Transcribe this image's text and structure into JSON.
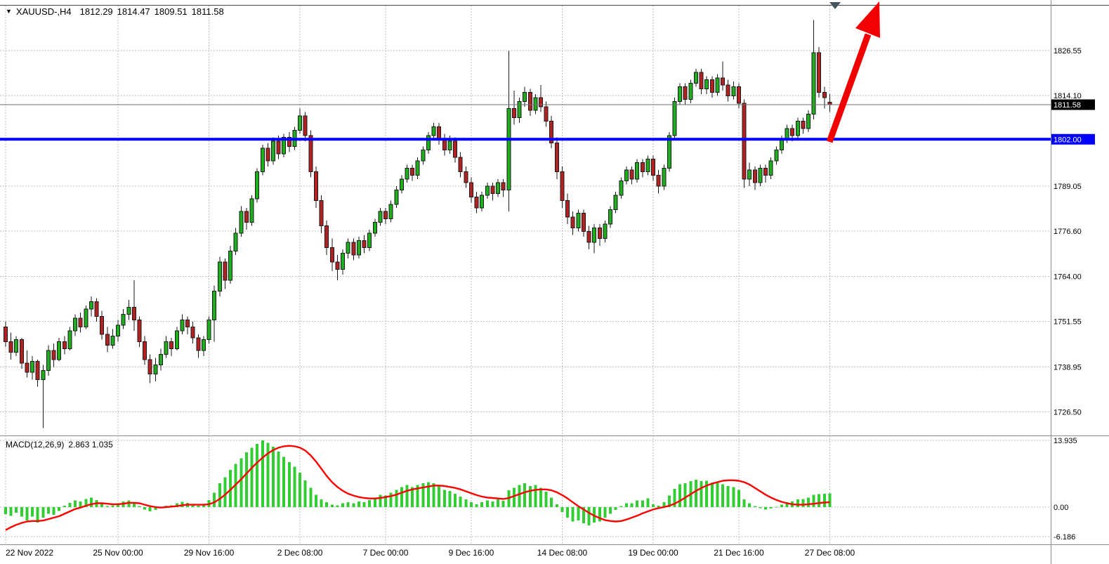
{
  "header": {
    "collapse_icon": "▼",
    "symbol_period": "XAUUSD-,H4",
    "open": "1812.29",
    "high": "1814.47",
    "low": "1809.51",
    "close": "1811.58"
  },
  "indicator_label": {
    "name": "MACD(12,26,9)",
    "values": "2.863 1.035"
  },
  "colors": {
    "background": "#FFFFFF",
    "up": "#1EAE1E",
    "down": "#B22222",
    "outline": "#1A1A1A",
    "grid": "#BDBDBD",
    "separator": "#8C8C8C",
    "top_border": "#444444",
    "support_line": "#0000FF",
    "signal": "#FF0000",
    "histogram": "#32CD32",
    "last_price_line": "#6E6E6E",
    "last_price_badge_bg": "#000000",
    "arrow": "#F20000",
    "shift_marker": "#44545E",
    "text": "#000000"
  },
  "chart_data": {
    "type": "candlestick",
    "title": "XAUUSD-,H4",
    "current_bar": {
      "open": 1812.29,
      "high": 1814.47,
      "low": 1809.51,
      "close": 1811.58
    },
    "ylim": [
      1720,
      1839
    ],
    "price_axis_ticks": [
      {
        "value": 1826.55,
        "label": "1826.55"
      },
      {
        "value": 1814.1,
        "label": "1814.10"
      },
      {
        "value": 1789.05,
        "label": "1789.05"
      },
      {
        "value": 1776.6,
        "label": "1776.60"
      },
      {
        "value": 1764.0,
        "label": "1764.00"
      },
      {
        "value": 1751.55,
        "label": "1751.55"
      },
      {
        "value": 1738.95,
        "label": "1738.95"
      },
      {
        "value": 1726.5,
        "label": "1726.50"
      }
    ],
    "last_price": {
      "value": 1811.58,
      "label": "1811.58"
    },
    "support_line": {
      "value": 1802.0,
      "label": "1802.00"
    },
    "time_ticks": [
      {
        "index": 0,
        "label": "22 Nov 2022",
        "align": "start"
      },
      {
        "index": 21,
        "label": "25 Nov 00:00"
      },
      {
        "index": 38,
        "label": "29 Nov 16:00"
      },
      {
        "index": 55,
        "label": "2 Dec 08:00"
      },
      {
        "index": 71,
        "label": "7 Dec 00:00"
      },
      {
        "index": 87,
        "label": "9 Dec 16:00"
      },
      {
        "index": 104,
        "label": "14 Dec 08:00"
      },
      {
        "index": 121,
        "label": "19 Dec 00:00"
      },
      {
        "index": 137,
        "label": "21 Dec 16:00"
      },
      {
        "index": 154,
        "label": "27 Dec 08:00"
      }
    ],
    "candles": [
      [
        1750.0,
        1751.5,
        1744.5,
        1746.0
      ],
      [
        1746.0,
        1748.5,
        1741.0,
        1743.0
      ],
      [
        1743.0,
        1747.5,
        1742.0,
        1746.5
      ],
      [
        1746.5,
        1747.0,
        1738.5,
        1740.0
      ],
      [
        1740.0,
        1743.5,
        1736.0,
        1737.5
      ],
      [
        1737.5,
        1742.0,
        1735.5,
        1740.5
      ],
      [
        1740.5,
        1741.0,
        1733.5,
        1735.5
      ],
      [
        1735.5,
        1739.5,
        1722.0,
        1738.0
      ],
      [
        1738.0,
        1745.0,
        1736.5,
        1743.5
      ],
      [
        1743.5,
        1745.5,
        1739.0,
        1741.0
      ],
      [
        1741.0,
        1747.0,
        1740.5,
        1746.0
      ],
      [
        1746.0,
        1747.5,
        1742.5,
        1744.0
      ],
      [
        1744.0,
        1750.0,
        1743.5,
        1749.0
      ],
      [
        1749.0,
        1753.5,
        1747.5,
        1752.5
      ],
      [
        1752.5,
        1754.0,
        1748.5,
        1750.0
      ],
      [
        1750.0,
        1756.0,
        1749.5,
        1755.0
      ],
      [
        1755.0,
        1758.5,
        1753.0,
        1757.0
      ],
      [
        1757.0,
        1758.0,
        1751.5,
        1753.0
      ],
      [
        1753.0,
        1754.5,
        1746.5,
        1748.0
      ],
      [
        1748.0,
        1750.0,
        1743.0,
        1745.0
      ],
      [
        1745.0,
        1749.5,
        1744.0,
        1747.5
      ],
      [
        1747.5,
        1752.0,
        1746.0,
        1750.5
      ],
      [
        1750.5,
        1755.0,
        1749.5,
        1753.5
      ],
      [
        1753.5,
        1757.5,
        1752.0,
        1755.5
      ],
      [
        1755.5,
        1763.0,
        1749.0,
        1752.0
      ],
      [
        1752.0,
        1753.0,
        1744.5,
        1746.0
      ],
      [
        1746.0,
        1747.5,
        1739.5,
        1741.0
      ],
      [
        1741.0,
        1742.5,
        1734.5,
        1737.0
      ],
      [
        1737.0,
        1741.5,
        1735.0,
        1739.5
      ],
      [
        1739.5,
        1744.0,
        1738.0,
        1742.5
      ],
      [
        1742.5,
        1747.5,
        1741.5,
        1746.0
      ],
      [
        1746.0,
        1747.0,
        1742.0,
        1744.0
      ],
      [
        1744.0,
        1750.0,
        1743.5,
        1749.0
      ],
      [
        1749.0,
        1753.5,
        1748.0,
        1752.0
      ],
      [
        1752.0,
        1753.0,
        1748.0,
        1750.0
      ],
      [
        1750.0,
        1751.5,
        1745.5,
        1747.0
      ],
      [
        1747.0,
        1748.0,
        1741.5,
        1743.5
      ],
      [
        1743.5,
        1747.5,
        1742.0,
        1746.5
      ],
      [
        1746.5,
        1753.0,
        1745.5,
        1752.0
      ],
      [
        1752.0,
        1761.5,
        1746.0,
        1760.0
      ],
      [
        1760.0,
        1769.5,
        1758.5,
        1768.0
      ],
      [
        1768.0,
        1769.0,
        1760.5,
        1763.0
      ],
      [
        1763.0,
        1772.5,
        1762.0,
        1771.0
      ],
      [
        1771.0,
        1777.5,
        1770.0,
        1776.0
      ],
      [
        1776.0,
        1783.5,
        1775.0,
        1782.0
      ],
      [
        1782.0,
        1783.0,
        1777.0,
        1779.0
      ],
      [
        1779.0,
        1786.5,
        1778.0,
        1785.5
      ],
      [
        1785.5,
        1794.0,
        1784.5,
        1793.0
      ],
      [
        1793.0,
        1800.5,
        1792.0,
        1799.5
      ],
      [
        1799.5,
        1801.0,
        1794.5,
        1796.0
      ],
      [
        1796.0,
        1802.5,
        1795.0,
        1801.5
      ],
      [
        1801.5,
        1803.0,
        1796.5,
        1798.0
      ],
      [
        1798.0,
        1803.5,
        1797.0,
        1802.5
      ],
      [
        1802.5,
        1804.0,
        1798.5,
        1800.0
      ],
      [
        1800.0,
        1805.5,
        1799.0,
        1804.5
      ],
      [
        1804.5,
        1810.5,
        1803.5,
        1808.5
      ],
      [
        1808.5,
        1809.5,
        1801.5,
        1803.0
      ],
      [
        1803.0,
        1804.5,
        1791.5,
        1793.0
      ],
      [
        1793.0,
        1794.5,
        1783.0,
        1785.0
      ],
      [
        1785.0,
        1786.5,
        1776.0,
        1778.0
      ],
      [
        1778.0,
        1779.5,
        1770.0,
        1772.0
      ],
      [
        1772.0,
        1774.5,
        1765.5,
        1768.0
      ],
      [
        1768.0,
        1770.0,
        1763.0,
        1766.0
      ],
      [
        1766.0,
        1771.5,
        1764.5,
        1770.5
      ],
      [
        1770.5,
        1774.5,
        1769.0,
        1773.5
      ],
      [
        1773.5,
        1774.5,
        1768.5,
        1770.0
      ],
      [
        1770.0,
        1775.0,
        1769.0,
        1774.0
      ],
      [
        1774.0,
        1775.5,
        1770.5,
        1772.0
      ],
      [
        1772.0,
        1777.0,
        1771.0,
        1776.0
      ],
      [
        1776.0,
        1780.0,
        1775.0,
        1779.0
      ],
      [
        1779.0,
        1783.0,
        1778.0,
        1782.0
      ],
      [
        1782.0,
        1783.0,
        1778.5,
        1780.0
      ],
      [
        1780.0,
        1785.0,
        1779.0,
        1784.0
      ],
      [
        1784.0,
        1789.0,
        1783.0,
        1788.0
      ],
      [
        1788.0,
        1792.0,
        1787.0,
        1791.0
      ],
      [
        1791.0,
        1795.0,
        1790.0,
        1794.0
      ],
      [
        1794.0,
        1795.0,
        1790.5,
        1792.0
      ],
      [
        1792.0,
        1797.0,
        1791.0,
        1796.0
      ],
      [
        1796.0,
        1800.0,
        1795.0,
        1799.0
      ],
      [
        1799.0,
        1804.0,
        1798.0,
        1803.0
      ],
      [
        1803.0,
        1806.5,
        1802.0,
        1805.5
      ],
      [
        1805.5,
        1806.5,
        1800.5,
        1802.0
      ],
      [
        1802.0,
        1803.5,
        1797.5,
        1799.0
      ],
      [
        1799.0,
        1803.0,
        1798.0,
        1801.5
      ],
      [
        1801.5,
        1802.5,
        1795.5,
        1797.0
      ],
      [
        1797.0,
        1798.5,
        1791.5,
        1793.0
      ],
      [
        1793.0,
        1794.5,
        1788.5,
        1790.0
      ],
      [
        1790.0,
        1791.5,
        1784.5,
        1786.0
      ],
      [
        1786.0,
        1787.5,
        1781.5,
        1783.0
      ],
      [
        1783.0,
        1787.5,
        1782.0,
        1786.5
      ],
      [
        1786.5,
        1790.0,
        1785.5,
        1789.0
      ],
      [
        1789.0,
        1790.0,
        1785.0,
        1787.0
      ],
      [
        1787.0,
        1791.0,
        1786.0,
        1790.0
      ],
      [
        1790.0,
        1791.0,
        1786.0,
        1788.0
      ],
      [
        1788.0,
        1826.5,
        1782.0,
        1810.5
      ],
      [
        1810.5,
        1815.5,
        1806.0,
        1808.0
      ],
      [
        1808.0,
        1813.5,
        1806.5,
        1812.5
      ],
      [
        1812.5,
        1816.5,
        1811.0,
        1815.0
      ],
      [
        1815.0,
        1816.0,
        1808.5,
        1810.0
      ],
      [
        1810.0,
        1814.5,
        1809.0,
        1813.5
      ],
      [
        1813.5,
        1817.0,
        1809.5,
        1811.0
      ],
      [
        1811.0,
        1812.5,
        1805.5,
        1807.0
      ],
      [
        1807.0,
        1808.5,
        1799.5,
        1801.0
      ],
      [
        1801.0,
        1802.5,
        1791.0,
        1793.0
      ],
      [
        1793.0,
        1794.5,
        1783.0,
        1785.0
      ],
      [
        1785.0,
        1787.0,
        1778.5,
        1780.5
      ],
      [
        1780.5,
        1782.0,
        1775.5,
        1777.5
      ],
      [
        1777.5,
        1782.5,
        1776.5,
        1781.5
      ],
      [
        1781.5,
        1782.5,
        1775.0,
        1776.5
      ],
      [
        1776.5,
        1778.0,
        1771.5,
        1773.5
      ],
      [
        1773.5,
        1778.5,
        1770.5,
        1777.5
      ],
      [
        1777.5,
        1778.5,
        1772.5,
        1774.5
      ],
      [
        1774.5,
        1779.5,
        1773.5,
        1778.5
      ],
      [
        1778.5,
        1783.5,
        1777.5,
        1782.5
      ],
      [
        1782.5,
        1787.5,
        1781.5,
        1786.5
      ],
      [
        1786.5,
        1791.5,
        1785.5,
        1790.5
      ],
      [
        1790.5,
        1794.5,
        1789.5,
        1793.5
      ],
      [
        1793.5,
        1794.5,
        1789.5,
        1791.0
      ],
      [
        1791.0,
        1796.5,
        1790.0,
        1795.5
      ],
      [
        1795.5,
        1796.5,
        1791.5,
        1793.0
      ],
      [
        1793.0,
        1797.5,
        1792.0,
        1796.5
      ],
      [
        1796.5,
        1797.5,
        1790.5,
        1792.0
      ],
      [
        1792.0,
        1793.5,
        1787.0,
        1789.0
      ],
      [
        1789.0,
        1795.0,
        1788.0,
        1794.0
      ],
      [
        1794.0,
        1804.0,
        1793.0,
        1803.0
      ],
      [
        1803.0,
        1813.5,
        1802.0,
        1812.5
      ],
      [
        1812.5,
        1817.5,
        1811.5,
        1816.5
      ],
      [
        1816.5,
        1817.5,
        1811.5,
        1813.0
      ],
      [
        1813.0,
        1818.5,
        1812.0,
        1817.5
      ],
      [
        1817.5,
        1821.5,
        1816.5,
        1820.5
      ],
      [
        1820.5,
        1821.5,
        1814.5,
        1816.0
      ],
      [
        1816.0,
        1819.5,
        1814.5,
        1818.5
      ],
      [
        1818.5,
        1819.5,
        1813.5,
        1815.0
      ],
      [
        1815.0,
        1820.0,
        1814.0,
        1819.0
      ],
      [
        1819.0,
        1823.5,
        1815.5,
        1817.0
      ],
      [
        1817.0,
        1818.5,
        1812.5,
        1814.0
      ],
      [
        1814.0,
        1818.0,
        1813.0,
        1816.5
      ],
      [
        1816.5,
        1817.5,
        1810.5,
        1812.0
      ],
      [
        1812.0,
        1813.0,
        1788.5,
        1791.0
      ],
      [
        1791.0,
        1795.5,
        1789.0,
        1793.5
      ],
      [
        1793.5,
        1794.5,
        1788.0,
        1790.0
      ],
      [
        1790.0,
        1795.0,
        1789.0,
        1794.0
      ],
      [
        1794.0,
        1795.0,
        1790.0,
        1792.0
      ],
      [
        1792.0,
        1797.0,
        1791.0,
        1796.0
      ],
      [
        1796.0,
        1800.0,
        1795.0,
        1799.0
      ],
      [
        1799.0,
        1803.0,
        1798.0,
        1802.0
      ],
      [
        1802.0,
        1806.0,
        1801.0,
        1805.0
      ],
      [
        1805.0,
        1806.0,
        1801.5,
        1803.0
      ],
      [
        1803.0,
        1808.0,
        1802.0,
        1807.0
      ],
      [
        1807.0,
        1808.0,
        1803.5,
        1805.0
      ],
      [
        1805.0,
        1810.0,
        1804.0,
        1809.0
      ],
      [
        1809.0,
        1835.0,
        1807.5,
        1826.0
      ],
      [
        1826.0,
        1827.5,
        1813.5,
        1815.0
      ],
      [
        1815.0,
        1816.5,
        1810.5,
        1813.5
      ],
      [
        1812.29,
        1814.47,
        1809.51,
        1811.58
      ]
    ],
    "macd": {
      "params": "12,26,9",
      "macd_value": 2.863,
      "signal_value": 1.035,
      "ylim": [
        -7.77,
        14.66
      ],
      "axis_ticks": [
        {
          "value": 13.935,
          "label": "13.935"
        },
        {
          "value": 0,
          "label": "0.00"
        },
        {
          "value": -6.186,
          "label": "-6.186"
        }
      ],
      "histogram": [
        -1.5,
        -1.8,
        -1.2,
        -2.0,
        -2.8,
        -2.0,
        -3.2,
        -2.2,
        -1.4,
        -1.6,
        -0.8,
        0.3,
        0.9,
        1.4,
        1.2,
        1.7,
        2.0,
        1.5,
        0.8,
        0.2,
        0.4,
        0.8,
        1.2,
        1.4,
        1.0,
        0.2,
        -0.5,
        -0.9,
        -0.6,
        -0.2,
        0.3,
        0.4,
        0.8,
        1.1,
        0.9,
        0.5,
        0.3,
        0.6,
        1.5,
        3.0,
        5.0,
        6.2,
        7.8,
        9.0,
        10.2,
        11.4,
        12.4,
        13.2,
        13.9,
        13.4,
        12.6,
        11.6,
        10.5,
        9.4,
        8.4,
        7.2,
        5.6,
        4.0,
        2.6,
        1.6,
        1.0,
        0.5,
        0.4,
        0.8,
        1.0,
        0.8,
        1.2,
        1.0,
        1.5,
        2.0,
        2.6,
        2.4,
        3.0,
        3.6,
        4.2,
        4.6,
        4.2,
        4.6,
        5.0,
        5.2,
        5.0,
        4.4,
        3.6,
        3.4,
        2.8,
        2.2,
        1.6,
        1.0,
        0.6,
        1.0,
        1.4,
        1.2,
        1.6,
        1.3,
        3.5,
        4.0,
        4.6,
        5.0,
        4.4,
        4.6,
        4.0,
        3.2,
        2.0,
        0.6,
        -1.0,
        -2.2,
        -3.0,
        -2.8,
        -3.4,
        -3.8,
        -3.2,
        -3.0,
        -2.2,
        -1.4,
        -0.6,
        0.2,
        0.8,
        0.8,
        1.4,
        1.4,
        1.8,
        0.6,
        0.3,
        1.0,
        2.4,
        3.8,
        4.8,
        5.0,
        5.4,
        5.7,
        5.4,
        5.5,
        5.1,
        5.2,
        4.8,
        4.4,
        4.2,
        3.6,
        1.6,
        0.8,
        0.2,
        -0.2,
        -0.5,
        -0.3,
        0.1,
        0.5,
        1.0,
        1.2,
        1.6,
        1.7,
        2.0,
        2.6,
        2.7,
        2.8,
        2.863
      ],
      "signal": [
        -4.8,
        -4.2,
        -3.7,
        -3.3,
        -3.0,
        -2.9,
        -2.9,
        -2.8,
        -2.5,
        -2.2,
        -1.9,
        -1.4,
        -0.9,
        -0.4,
        -0.1,
        0.3,
        0.6,
        0.8,
        0.8,
        0.7,
        0.6,
        0.6,
        0.7,
        0.9,
        0.9,
        0.8,
        0.5,
        0.2,
        0.0,
        -0.1,
        0.0,
        0.1,
        0.2,
        0.4,
        0.5,
        0.5,
        0.5,
        0.5,
        0.6,
        1.0,
        1.7,
        2.6,
        3.6,
        4.7,
        5.8,
        7.0,
        8.2,
        9.3,
        10.3,
        11.2,
        11.9,
        12.4,
        12.7,
        12.8,
        12.7,
        12.4,
        11.8,
        10.8,
        9.5,
        8.0,
        6.5,
        5.2,
        4.2,
        3.4,
        2.8,
        2.4,
        2.1,
        1.9,
        1.8,
        1.8,
        1.9,
        2.1,
        2.3,
        2.6,
        3.0,
        3.4,
        3.7,
        3.9,
        4.1,
        4.3,
        4.5,
        4.5,
        4.4,
        4.2,
        4.0,
        3.7,
        3.3,
        2.9,
        2.5,
        2.2,
        2.0,
        1.9,
        1.8,
        1.7,
        1.9,
        2.3,
        2.7,
        3.1,
        3.4,
        3.6,
        3.7,
        3.7,
        3.5,
        3.1,
        2.5,
        1.8,
        1.0,
        0.2,
        -0.5,
        -1.2,
        -1.8,
        -2.3,
        -2.7,
        -2.9,
        -3.0,
        -2.9,
        -2.6,
        -2.2,
        -1.8,
        -1.3,
        -0.9,
        -0.5,
        -0.2,
        0.0,
        0.3,
        0.7,
        1.3,
        2.0,
        2.7,
        3.4,
        4.0,
        4.5,
        4.9,
        5.2,
        5.5,
        5.6,
        5.6,
        5.5,
        5.2,
        4.7,
        4.0,
        3.3,
        2.6,
        2.0,
        1.5,
        1.1,
        0.8,
        0.6,
        0.5,
        0.5,
        0.6,
        0.7,
        0.85,
        0.95,
        1.035
      ]
    },
    "annotations": [
      {
        "type": "arrow",
        "direction": "up-right",
        "color": "#F20000"
      },
      {
        "type": "shift-marker",
        "color": "#44545E"
      }
    ]
  }
}
